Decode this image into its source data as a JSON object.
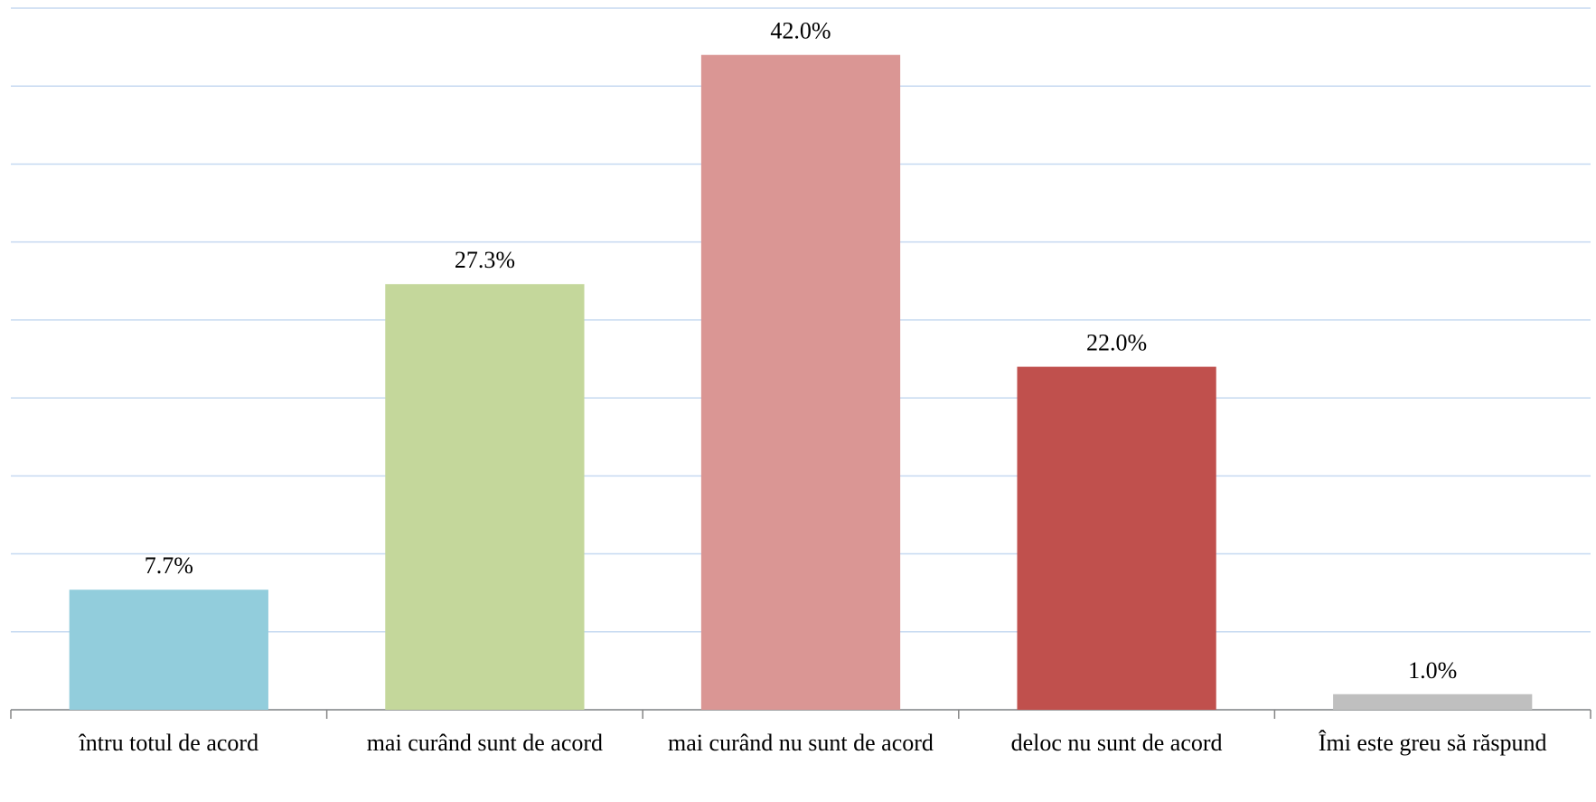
{
  "chart_data": {
    "type": "bar",
    "categories": [
      "întru totul de acord",
      "mai curând sunt de acord",
      "mai curând nu sunt de acord",
      "deloc nu sunt de acord",
      "Îmi este greu să răspund"
    ],
    "values": [
      7.7,
      27.3,
      42.0,
      22.0,
      1.0
    ],
    "value_labels": [
      "7.7%",
      "27.3%",
      "42.0%",
      "22.0%",
      "1.0%"
    ],
    "colors": [
      "#92cddc",
      "#c4d79b",
      "#da9694",
      "#c0504d",
      "#bfbfbf"
    ],
    "ylim": [
      0,
      45
    ],
    "yticks": [
      0,
      5,
      10,
      15,
      20,
      25,
      30,
      35,
      40,
      45
    ],
    "grid": true
  }
}
